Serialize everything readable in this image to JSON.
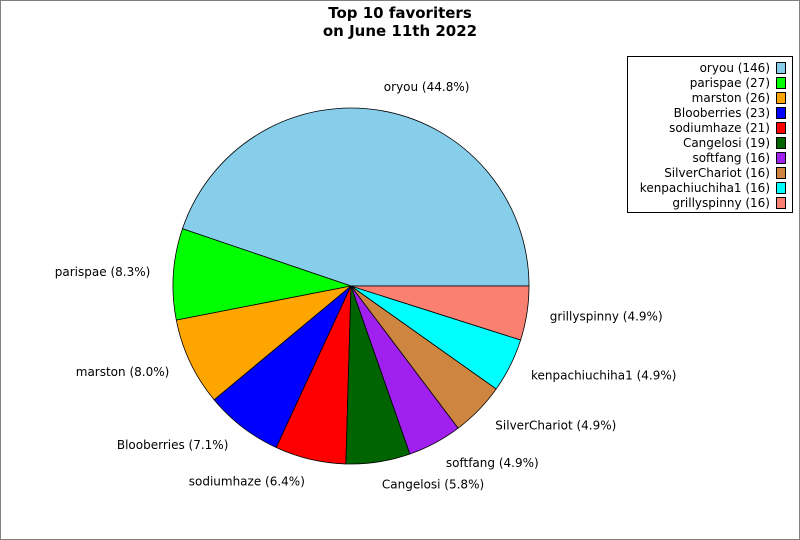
{
  "chart_data": {
    "type": "pie",
    "title": [
      "Top 10 favoriters",
      "on June 11th 2022"
    ],
    "categories": [
      "oryou",
      "parispae",
      "marston",
      "Blooberries",
      "sodiumhaze",
      "Cangelosi",
      "softfang",
      "SilverChariot",
      "kenpachiuchiha1",
      "grillyspinny"
    ],
    "values": [
      146,
      27,
      26,
      23,
      21,
      19,
      16,
      16,
      16,
      16
    ],
    "slice_labels": [
      "oryou (44.8%)",
      "parispae (8.3%)",
      "marston (8.0%)",
      "Blooberries (7.1%)",
      "sodiumhaze (6.4%)",
      "Cangelosi (5.8%)",
      "softfang (4.9%)",
      "SilverChariot (4.9%)",
      "kenpachiuchiha1 (4.9%)",
      "grillyspinny (4.9%)"
    ],
    "legend_entries": [
      "oryou (146)",
      "parispae (27)",
      "marston (26)",
      "Blooberries (23)",
      "sodiumhaze (21)",
      "Cangelosi (19)",
      "softfang (16)",
      "SilverChariot (16)",
      "kenpachiuchiha1 (16)",
      "grillyspinny (16)"
    ],
    "colors": [
      "#87ceeb",
      "#00ff00",
      "#ffa500",
      "#0000ff",
      "#ff0000",
      "#006400",
      "#a020f0",
      "#cd853f",
      "#00ffff",
      "#fa8072"
    ],
    "start_angle_deg": 0,
    "direction": "counterclockwise",
    "legend_position": "top-right"
  }
}
